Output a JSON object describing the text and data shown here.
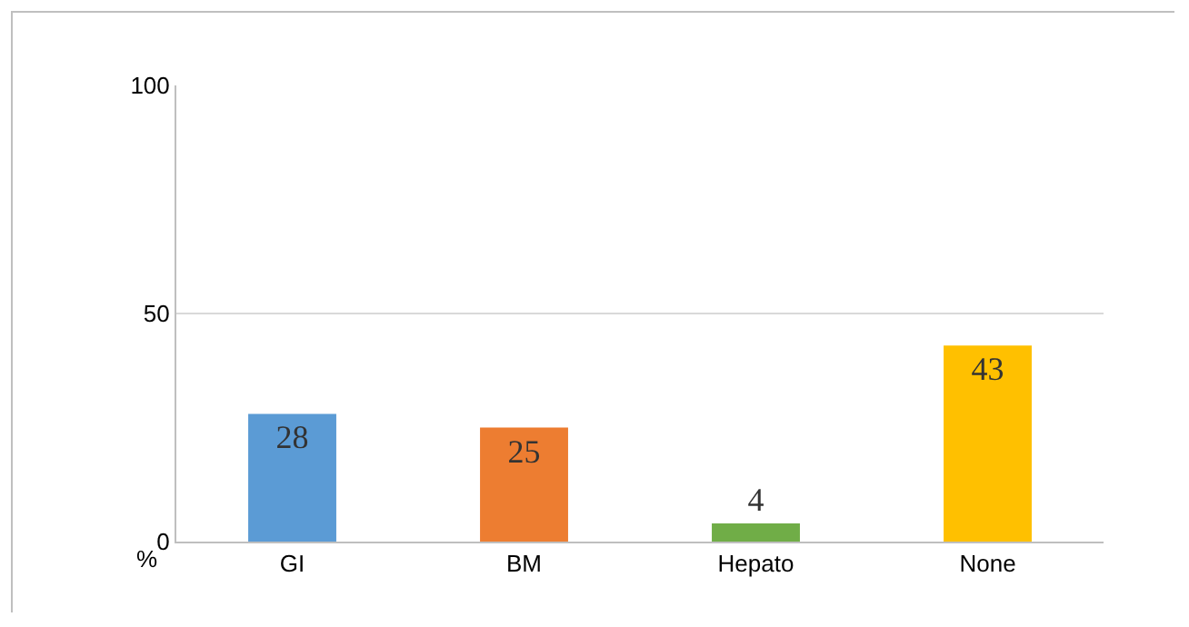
{
  "chart_data": {
    "type": "bar",
    "categories": [
      "GI",
      "BM",
      "Hepato",
      "None"
    ],
    "values": [
      28,
      25,
      4,
      43
    ],
    "colors": [
      "#5b9bd5",
      "#ed7d31",
      "#70ad47",
      "#ffc000"
    ],
    "ylim": [
      0,
      100
    ],
    "yticks": [
      0,
      50,
      100
    ],
    "ylabel": "%",
    "grid": "y",
    "data_labels": true
  }
}
